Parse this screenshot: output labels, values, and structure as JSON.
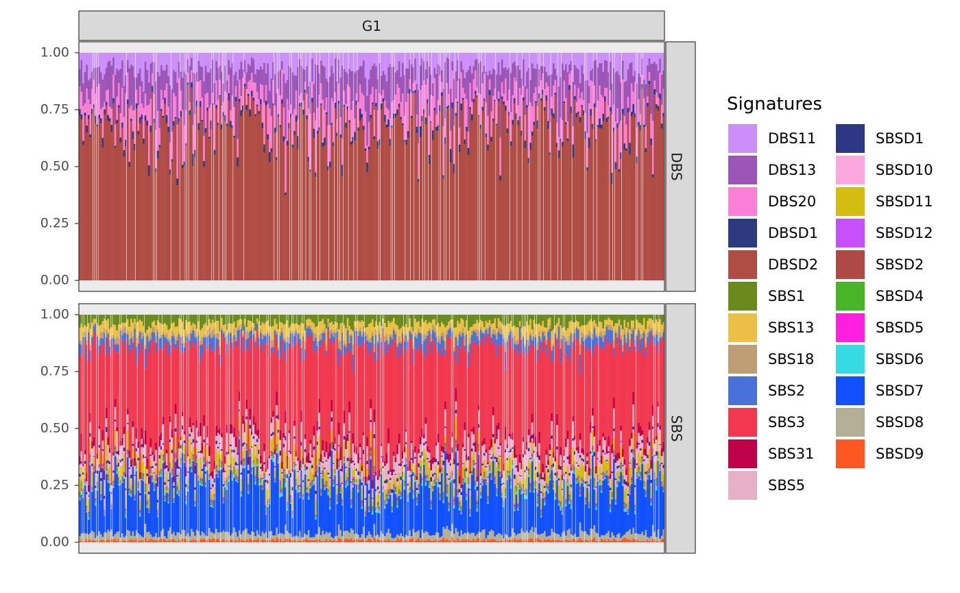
{
  "chart_data": {
    "type": "bar",
    "stacked": true,
    "note_values": "stacked proportions per sample; each sample column sums to 1.0",
    "column_facet": "G1",
    "row_facets": [
      "DBS",
      "SBS"
    ],
    "ylim": [
      0,
      1
    ],
    "yticks": [
      "1.00",
      "0.75",
      "0.50",
      "0.25",
      "0.00"
    ],
    "n_samples": 330,
    "legend": {
      "title": "Signatures",
      "position": "right",
      "columns": [
        [
          "DBS11",
          "DBS13",
          "DBS20",
          "DBSD1",
          "DBSD2",
          "SBS1",
          "SBS13",
          "SBS18",
          "SBS2",
          "SBS3",
          "SBS31",
          "SBS5"
        ],
        [
          "SBSD1",
          "SBSD10",
          "SBSD11",
          "SBSD12",
          "SBSD2",
          "SBSD4",
          "SBSD5",
          "SBSD6",
          "SBSD7",
          "SBSD8",
          "SBSD9"
        ]
      ]
    },
    "colors": {
      "DBS11": "#CC8FFA",
      "DBS13": "#9B55B6",
      "DBS20": "#FB7FD4",
      "DBSD1": "#2E3A80",
      "DBSD2": "#AF4C44",
      "SBS1": "#6B8A1E",
      "SBS13": "#EBC047",
      "SBS18": "#BF9E75",
      "SBS2": "#4971D7",
      "SBS3": "#F2384E",
      "SBS31": "#BF0048",
      "SBS5": "#E8B0C6",
      "SBSD1": "#2C3883",
      "SBSD10": "#FCA8DF",
      "SBSD11": "#D2BD10",
      "SBSD12": "#C850FB",
      "SBSD2": "#AE4A43",
      "SBSD4": "#47B527",
      "SBSD5": "#FE1FDF",
      "SBSD6": "#35DAE2",
      "SBSD7": "#1150FF",
      "SBSD8": "#B4B096",
      "SBSD9": "#FF5622"
    },
    "series": [
      {
        "facet": "DBS",
        "stack_order_top_to_bottom": [
          "DBS11",
          "DBS13",
          "DBS20",
          "DBSD1",
          "DBSD2"
        ],
        "mean_values": {
          "DBS11": 0.07,
          "DBS13": 0.12,
          "DBS20": 0.1,
          "DBSD1": 0.02,
          "DBSD2": 0.69
        }
      },
      {
        "facet": "SBS",
        "stack_order_top_to_bottom": [
          "SBS1",
          "SBS13",
          "SBS18",
          "SBS2",
          "SBS3",
          "SBS31",
          "SBS5",
          "SBSD1",
          "SBSD10",
          "SBSD11",
          "SBSD12",
          "SBSD2",
          "SBSD4",
          "SBSD5",
          "SBSD6",
          "SBSD7",
          "SBSD8",
          "SBSD9"
        ],
        "mean_values": {
          "SBS1": 0.04,
          "SBS13": 0.04,
          "SBS18": 0.02,
          "SBS2": 0.04,
          "SBS3": 0.42,
          "SBS31": 0.03,
          "SBS5": 0.05,
          "SBSD1": 0.01,
          "SBSD10": 0.02,
          "SBSD11": 0.05,
          "SBSD12": 0.005,
          "SBSD2": 0.005,
          "SBSD4": 0.01,
          "SBSD5": 0.005,
          "SBSD6": 0.01,
          "SBSD7": 0.2,
          "SBSD8": 0.03,
          "SBSD9": 0.01
        }
      }
    ]
  }
}
